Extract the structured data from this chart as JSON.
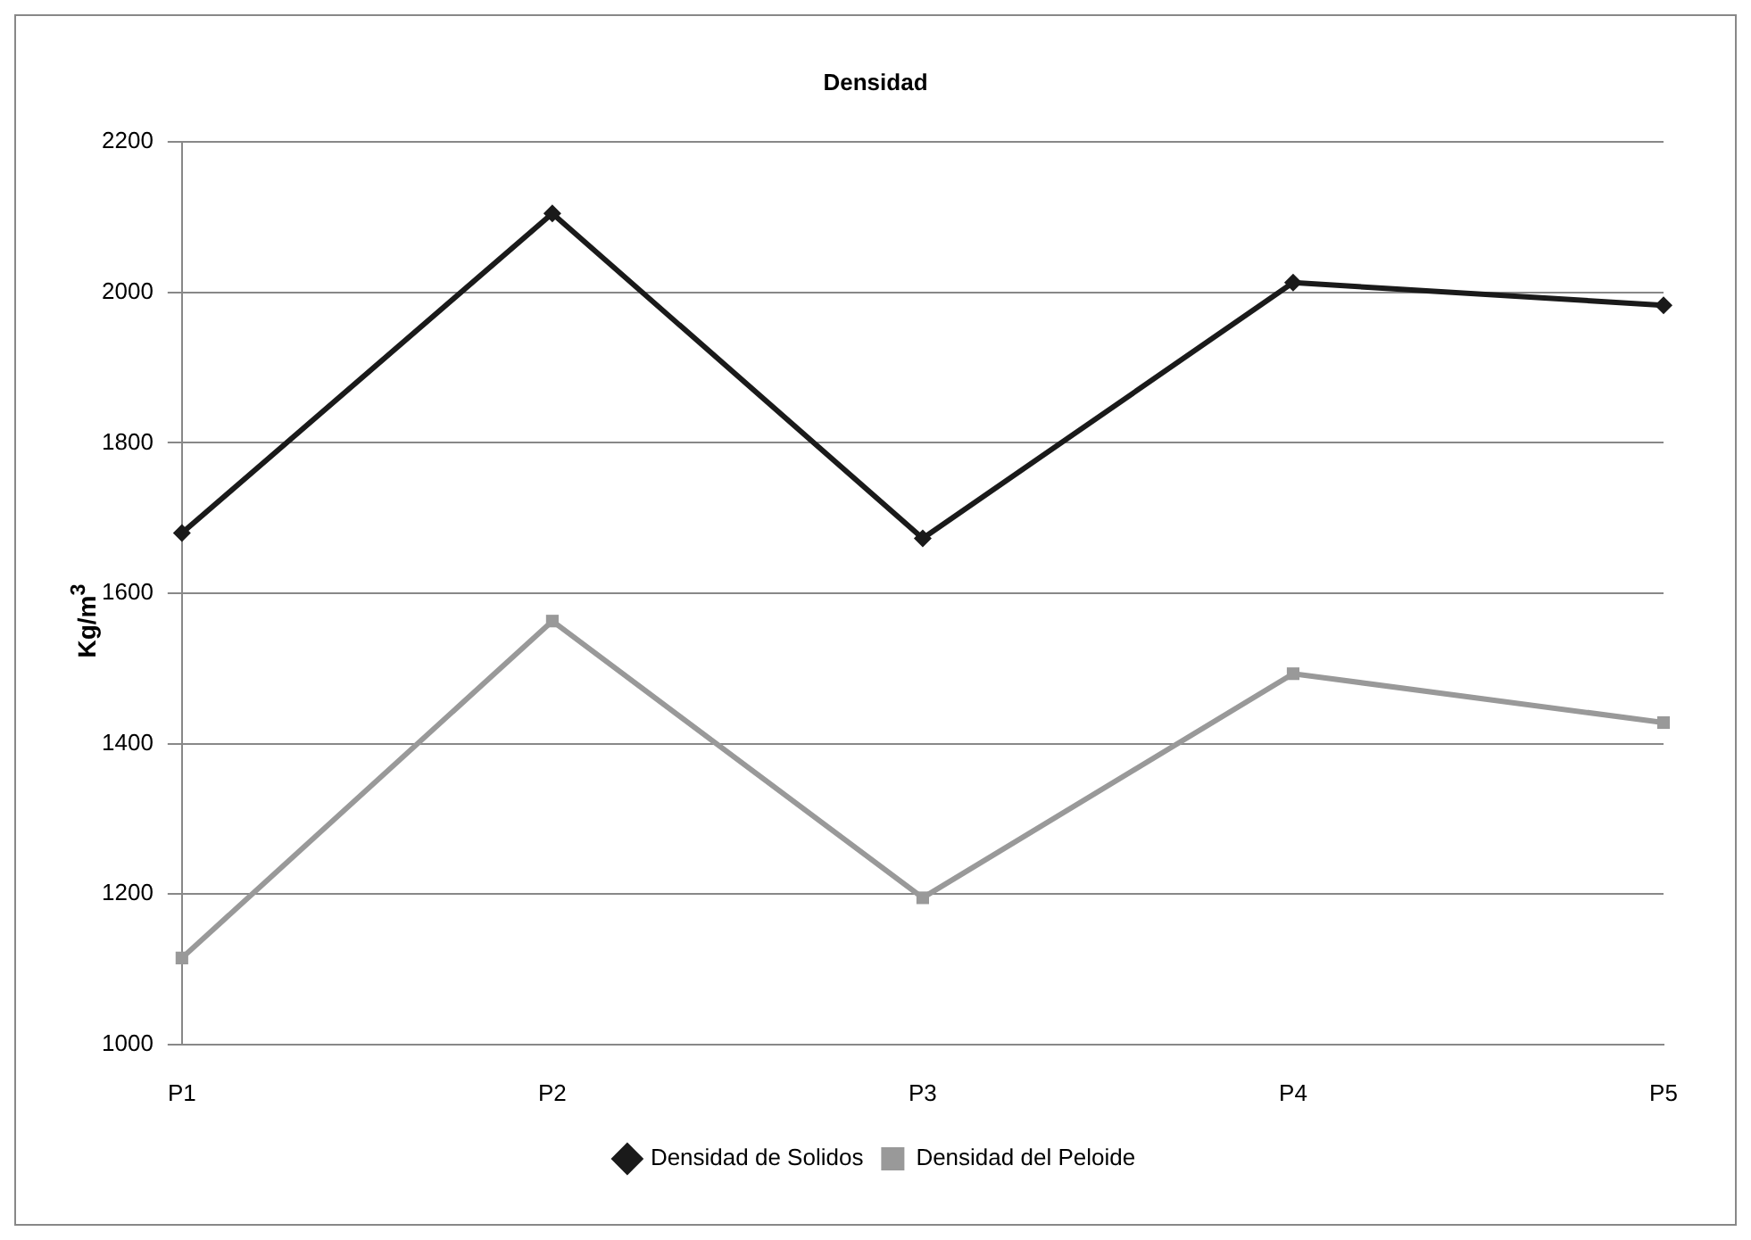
{
  "chart_data": {
    "type": "line",
    "title": "Densidad",
    "ylabel": "Kg/m$^{3}$",
    "categories": [
      "P1",
      "P2",
      "P3",
      "P4",
      "P5"
    ],
    "series": [
      {
        "name": "Densidad de Solidos",
        "color": "#1a1a1a",
        "marker": "diamond",
        "values": [
          1680,
          2105,
          1673,
          2013,
          1983
        ]
      },
      {
        "name": "Densidad del Peloide",
        "color": "#999999",
        "marker": "square",
        "values": [
          1115,
          1563,
          1195,
          1493,
          1428
        ]
      }
    ],
    "ylim": [
      1000,
      2200
    ],
    "yticks": [
      1000,
      1200,
      1400,
      1600,
      1800,
      2000,
      2200
    ],
    "grid": "y",
    "legend": "bottom",
    "line_style": "solid"
  }
}
